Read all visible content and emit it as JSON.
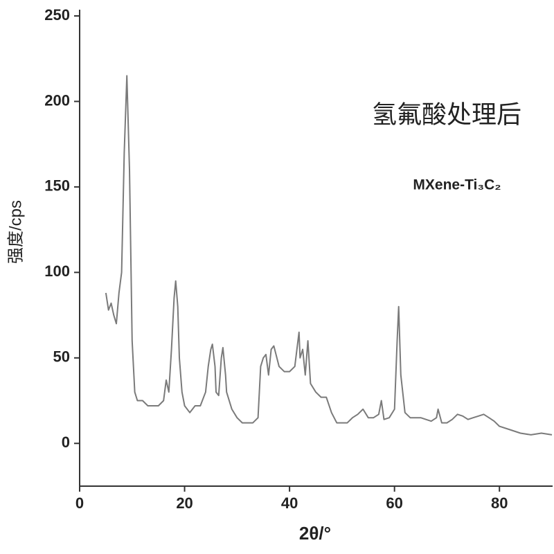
{
  "chart_data": {
    "type": "line",
    "title": "氢氟酸处理后",
    "subtitle": "MXene-Ti₃C₂",
    "x_label": "2θ/°",
    "y_label": "强度/cps",
    "xlim": [
      0,
      90
    ],
    "ylim": [
      -25,
      250
    ],
    "xticks": [
      0,
      20,
      40,
      60,
      80
    ],
    "yticks": [
      0,
      50,
      100,
      150,
      200,
      250
    ],
    "x": [
      5,
      5.5,
      6,
      6.5,
      7,
      7.5,
      8,
      8.5,
      9,
      9.5,
      10,
      10.5,
      11,
      12,
      13,
      14,
      15,
      16,
      16.5,
      17,
      17.5,
      18,
      18.3,
      18.7,
      19,
      19.5,
      20,
      21,
      22,
      23,
      24,
      24.5,
      25,
      25.3,
      25.8,
      26,
      26.5,
      27,
      27.3,
      27.8,
      28,
      29,
      30,
      31,
      32,
      33,
      34,
      34.5,
      35,
      35.5,
      36,
      36.5,
      37,
      38,
      39,
      40,
      41,
      41.8,
      42,
      42.5,
      43,
      43.5,
      44,
      45,
      46,
      47,
      48,
      49,
      50,
      51,
      52,
      53,
      54,
      55,
      56,
      57,
      57.5,
      58,
      59,
      60,
      60.5,
      60.8,
      61.2,
      62,
      63,
      64,
      65,
      66,
      67,
      68,
      68.3,
      69,
      70,
      71,
      72,
      73,
      74,
      75,
      76,
      77,
      78,
      79,
      80,
      82,
      84,
      86,
      88,
      90
    ],
    "series": [
      {
        "color": "#7a7a7a",
        "values": [
          88,
          78,
          82,
          75,
          70,
          88,
          100,
          170,
          215,
          160,
          60,
          30,
          25,
          25,
          22,
          22,
          22,
          25,
          37,
          30,
          55,
          85,
          95,
          80,
          50,
          30,
          22,
          18,
          22,
          22,
          30,
          45,
          55,
          58,
          45,
          30,
          28,
          50,
          56,
          40,
          30,
          20,
          15,
          12,
          12,
          12,
          15,
          45,
          50,
          52,
          40,
          55,
          57,
          45,
          42,
          42,
          45,
          65,
          50,
          55,
          40,
          60,
          35,
          30,
          27,
          27,
          18,
          12,
          12,
          12,
          15,
          17,
          20,
          15,
          15,
          17,
          25,
          14,
          15,
          20,
          60,
          80,
          40,
          18,
          15,
          15,
          15,
          14,
          13,
          15,
          20,
          12,
          12,
          14,
          17,
          16,
          14,
          15,
          16,
          17,
          15,
          13,
          10,
          8,
          6,
          5,
          6,
          5
        ]
      }
    ]
  }
}
